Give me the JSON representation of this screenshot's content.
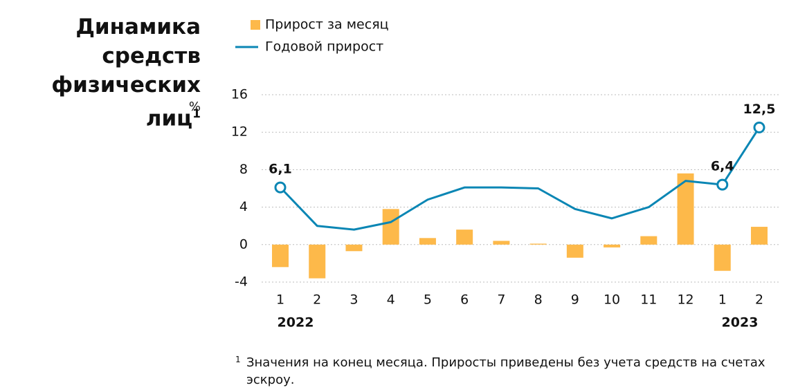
{
  "chart_data": {
    "type": "bar-line",
    "title": "Динамика средств физических лиц",
    "title_note": "1",
    "unit": "%",
    "categories": [
      "1",
      "2",
      "3",
      "4",
      "5",
      "6",
      "7",
      "8",
      "9",
      "10",
      "11",
      "12",
      "1",
      "2"
    ],
    "x_groups": [
      "2022",
      "2023"
    ],
    "series": [
      {
        "name": "Прирост за месяц",
        "kind": "bar",
        "color": "#fdb94a",
        "values": [
          -2.4,
          -3.6,
          -0.7,
          3.8,
          0.7,
          1.6,
          0.4,
          0.1,
          -1.4,
          -0.3,
          0.9,
          7.6,
          -2.8,
          1.9
        ]
      },
      {
        "name": "Годовой прирост",
        "kind": "line",
        "color": "#0a86b4",
        "values": [
          6.1,
          2.0,
          1.6,
          2.4,
          4.8,
          6.1,
          6.1,
          6.0,
          3.8,
          2.8,
          4.0,
          6.8,
          6.4,
          12.5
        ],
        "value_labels": [
          "6,1",
          null,
          null,
          null,
          null,
          null,
          null,
          null,
          null,
          null,
          null,
          null,
          "6,4",
          "12,5"
        ]
      }
    ],
    "ylim": [
      -4,
      16
    ],
    "yticks": [
      -4,
      0,
      4,
      8,
      12,
      16
    ],
    "grid": true,
    "footnote": {
      "mark": "1",
      "text": "Значения на конец месяца. Приросты приведены без учета средств на счетах эскроу."
    }
  }
}
